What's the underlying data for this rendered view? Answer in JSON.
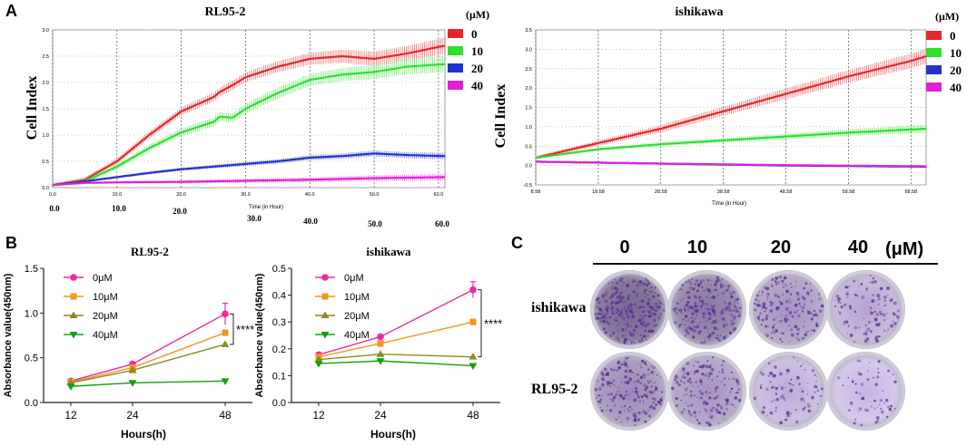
{
  "panels": {
    "a": "A",
    "b": "B",
    "c": "C"
  },
  "legend_unit": "(μM)",
  "chart_data": [
    {
      "id": "rtca_rl95",
      "type": "line",
      "title": "RL95-2",
      "xlabel": "Time (in Hour)",
      "ylabel": "Cell Index",
      "xlim": [
        0,
        61
      ],
      "ylim": [
        0,
        3.0
      ],
      "y_ticks": [
        "0.0",
        "0.5",
        "1.0",
        "1.5",
        "2.0",
        "2.5",
        "3.0"
      ],
      "x_ticks": [
        "0.0",
        "10.0",
        "20.0",
        "30.0",
        "40.0",
        "50.0",
        "60.0"
      ],
      "x_ticks_large": [
        "0.0",
        "10.0",
        "20.0",
        "30.0",
        "40.0",
        "50.0",
        "60.0"
      ],
      "grid": true,
      "legend_position": "right",
      "series": [
        {
          "name": "0",
          "color": "#e8262a",
          "x": [
            0,
            5,
            10,
            15,
            20,
            25,
            26,
            28,
            30,
            35,
            40,
            45,
            50,
            55,
            61
          ],
          "y": [
            0.05,
            0.15,
            0.5,
            1.0,
            1.45,
            1.72,
            1.82,
            1.95,
            2.1,
            2.3,
            2.45,
            2.5,
            2.45,
            2.55,
            2.7
          ],
          "err": 0.12
        },
        {
          "name": "10",
          "color": "#2ee02e",
          "x": [
            0,
            5,
            10,
            15,
            20,
            25,
            26,
            28,
            30,
            35,
            40,
            45,
            50,
            55,
            61
          ],
          "y": [
            0.05,
            0.12,
            0.4,
            0.75,
            1.05,
            1.25,
            1.35,
            1.33,
            1.5,
            1.8,
            2.05,
            2.15,
            2.2,
            2.3,
            2.35
          ],
          "err": 0.12
        },
        {
          "name": "20",
          "color": "#2233cc",
          "x": [
            0,
            5,
            10,
            15,
            20,
            25,
            30,
            35,
            40,
            45,
            50,
            55,
            61
          ],
          "y": [
            0.05,
            0.12,
            0.2,
            0.28,
            0.35,
            0.4,
            0.45,
            0.5,
            0.57,
            0.6,
            0.65,
            0.62,
            0.6
          ],
          "err": 0.05
        },
        {
          "name": "40",
          "color": "#e020d8",
          "x": [
            0,
            5,
            10,
            20,
            30,
            40,
            50,
            61
          ],
          "y": [
            0.05,
            0.09,
            0.1,
            0.11,
            0.13,
            0.15,
            0.18,
            0.2
          ],
          "err": 0.05
        }
      ]
    },
    {
      "id": "rtca_ishikawa",
      "type": "line",
      "title": "ishikawa",
      "xlabel": "Time (in Hour)",
      "ylabel": "Cell Index",
      "xlim": [
        8.58,
        71
      ],
      "ylim": [
        -0.5,
        3.5
      ],
      "y_ticks": [
        "-0.5",
        "0.0",
        "0.5",
        "1.0",
        "1.5",
        "2.0",
        "2.5",
        "3.0",
        "3.5"
      ],
      "x_ticks": [
        "8.58",
        "18.58",
        "28.58",
        "38.58",
        "48.58",
        "58.58",
        "68.58"
      ],
      "grid": true,
      "legend_position": "right",
      "series": [
        {
          "name": "0",
          "color": "#e8262a",
          "x": [
            8.58,
            18.58,
            28.58,
            38.58,
            48.58,
            58.58,
            68.58,
            71
          ],
          "y": [
            0.2,
            0.58,
            0.95,
            1.4,
            1.85,
            2.3,
            2.7,
            2.82
          ],
          "err": 0.15
        },
        {
          "name": "10",
          "color": "#2ee02e",
          "x": [
            8.58,
            18.58,
            28.58,
            38.58,
            48.58,
            58.58,
            71
          ],
          "y": [
            0.2,
            0.42,
            0.55,
            0.65,
            0.75,
            0.85,
            0.95
          ],
          "err": 0.08
        },
        {
          "name": "20",
          "color": "#2233cc",
          "x": [
            8.58,
            28.58,
            48.58,
            71
          ],
          "y": [
            0.1,
            0.05,
            0.0,
            -0.03
          ],
          "err": 0.02
        },
        {
          "name": "40",
          "color": "#e020d8",
          "x": [
            8.58,
            28.58,
            48.58,
            71
          ],
          "y": [
            0.1,
            0.05,
            0.01,
            -0.02
          ],
          "err": 0.02
        }
      ]
    },
    {
      "id": "cck8_rl95",
      "type": "line",
      "title": "RL95-2",
      "xlabel": "Hours(h)",
      "ylabel": "Absorbance value(450nm)",
      "categories": [
        "12",
        "24",
        "48"
      ],
      "ylim": [
        0,
        1.5
      ],
      "y_ticks": [
        "0.0",
        "0.5",
        "1.0",
        "1.5"
      ],
      "significance": "****",
      "series": [
        {
          "name": "0μM",
          "color": "#f0289a",
          "marker": "circle",
          "values": [
            0.24,
            0.43,
            0.99
          ],
          "err": [
            0,
            0,
            0.12
          ]
        },
        {
          "name": "10μM",
          "color": "#f7941d",
          "marker": "square",
          "values": [
            0.23,
            0.39,
            0.78
          ],
          "err": [
            0,
            0,
            0
          ]
        },
        {
          "name": "20μM",
          "color": "#8a8a1f",
          "marker": "triangle",
          "values": [
            0.22,
            0.36,
            0.65
          ],
          "err": [
            0,
            0,
            0
          ]
        },
        {
          "name": "40μM",
          "color": "#12a012",
          "marker": "tri-down",
          "values": [
            0.18,
            0.22,
            0.24
          ],
          "err": [
            0,
            0,
            0
          ]
        }
      ]
    },
    {
      "id": "cck8_ishikawa",
      "type": "line",
      "title": "ishikawa",
      "xlabel": "Hours(h)",
      "ylabel": "Absorbance value(450nm)",
      "categories": [
        "12",
        "24",
        "48"
      ],
      "ylim": [
        0,
        0.5
      ],
      "y_ticks": [
        "0.0",
        "0.1",
        "0.2",
        "0.3",
        "0.4",
        "0.5"
      ],
      "significance": "****",
      "series": [
        {
          "name": "0μM",
          "color": "#f0289a",
          "marker": "circle",
          "values": [
            0.178,
            0.245,
            0.42
          ],
          "err": [
            0,
            0,
            0.03
          ]
        },
        {
          "name": "10μM",
          "color": "#f7941d",
          "marker": "square",
          "values": [
            0.17,
            0.22,
            0.3
          ],
          "err": [
            0,
            0,
            0.01
          ]
        },
        {
          "name": "20μM",
          "color": "#8a8a1f",
          "marker": "triangle",
          "values": [
            0.16,
            0.18,
            0.17
          ],
          "err": [
            0,
            0,
            0
          ]
        },
        {
          "name": "40μM",
          "color": "#12a012",
          "marker": "tri-down",
          "values": [
            0.145,
            0.155,
            0.137
          ],
          "err": [
            0,
            0,
            0
          ]
        }
      ]
    }
  ],
  "colony": {
    "concentrations": [
      "0",
      "10",
      "20",
      "40"
    ],
    "unit": "(μM)",
    "rows": [
      {
        "label": "ishikawa",
        "densities": [
          0.95,
          0.75,
          0.45,
          0.25
        ]
      },
      {
        "label": "RL95-2",
        "densities": [
          0.55,
          0.45,
          0.18,
          0.08
        ]
      }
    ]
  }
}
